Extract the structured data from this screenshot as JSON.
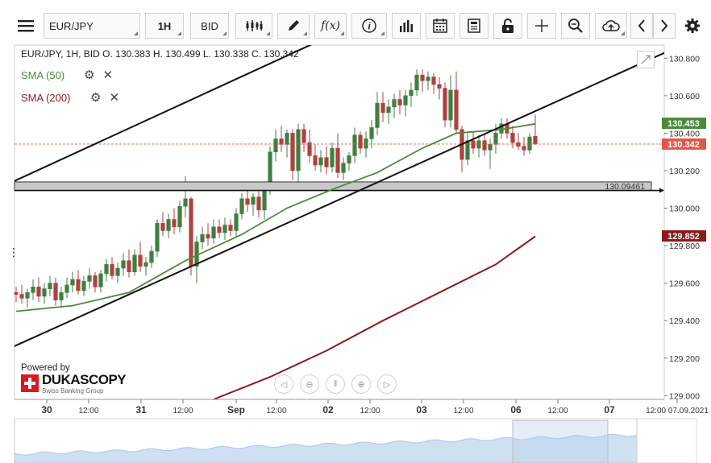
{
  "toolbar": {
    "menu_icon": "hamburger-menu-icon",
    "instrument": "EUR/JPY",
    "timeframe": "1H",
    "price_side": "BID",
    "icons": [
      "candle-type-icon",
      "pencil-draw-icon",
      "function-icon",
      "info-icon",
      "volume-bars-icon",
      "calendar-icon",
      "news-icon",
      "unlock-icon",
      "crosshair-icon",
      "zoom-icon",
      "cloud-upload-icon",
      "chevron-left-icon",
      "chevron-right-icon",
      "gear-icon"
    ],
    "function_label": "f(x)",
    "info_label": "i"
  },
  "legend": {
    "ohlc": "EUR/JPY, 1H, BID    O. 130.383 H. 130.499 L. 130.338 C. 130.342",
    "sma50": "SMA (50)",
    "sma200": "SMA (200)",
    "sma50_color": "#4a8a3a",
    "sma200_color": "#8b1a1a"
  },
  "branding": {
    "powered_by": "Powered by",
    "name": "DUKASCOPY",
    "sub": "Swiss Banking Group"
  },
  "chart_data": {
    "type": "candlestick",
    "instrument": "EUR/JPY",
    "timeframe": "1H",
    "y_ticks": [
      "130.800",
      "130.600",
      "130.400",
      "130.200",
      "130.000",
      "129.800",
      "129.600",
      "129.400",
      "129.200",
      "129.000"
    ],
    "ylim": [
      128.98,
      130.87
    ],
    "x_ticks": [
      "30",
      "12:00",
      "31",
      "12:00",
      "Sep",
      "12:00",
      "02",
      "12:00",
      "03",
      "12:00",
      "06",
      "12:00",
      "07",
      "12:00 07.09.2021"
    ],
    "price_labels": {
      "sma50": {
        "text": "130.453",
        "value": 130.453,
        "color": "#4a8a3a"
      },
      "last": {
        "text": "130.342",
        "value": 130.342,
        "color": "#e0584a"
      },
      "sma200": {
        "text": "129.852",
        "value": 129.852,
        "color": "#8b1a1a"
      },
      "hline": {
        "text": "130.09461",
        "value": 130.09461
      }
    },
    "candles": [
      [
        129.55,
        129.58,
        129.5,
        129.54
      ],
      [
        129.54,
        129.59,
        129.49,
        129.52
      ],
      [
        129.52,
        129.57,
        129.47,
        129.55
      ],
      [
        129.55,
        129.62,
        129.51,
        129.58
      ],
      [
        129.58,
        129.63,
        129.5,
        129.53
      ],
      [
        129.53,
        129.6,
        129.49,
        129.57
      ],
      [
        129.57,
        129.64,
        129.53,
        129.6
      ],
      [
        129.6,
        129.63,
        129.48,
        129.51
      ],
      [
        129.51,
        129.58,
        129.47,
        129.55
      ],
      [
        129.55,
        129.63,
        129.52,
        129.59
      ],
      [
        129.59,
        129.66,
        129.55,
        129.62
      ],
      [
        129.62,
        129.67,
        129.54,
        129.56
      ],
      [
        129.56,
        129.64,
        129.53,
        129.61
      ],
      [
        129.61,
        129.68,
        129.57,
        129.64
      ],
      [
        129.64,
        129.66,
        129.55,
        129.58
      ],
      [
        129.58,
        129.67,
        129.55,
        129.65
      ],
      [
        129.65,
        129.73,
        129.61,
        129.7
      ],
      [
        129.7,
        129.74,
        129.62,
        129.64
      ],
      [
        129.64,
        129.71,
        129.6,
        129.68
      ],
      [
        129.68,
        129.76,
        129.64,
        129.72
      ],
      [
        129.72,
        129.78,
        129.63,
        129.66
      ],
      [
        129.66,
        129.78,
        129.64,
        129.75
      ],
      [
        129.75,
        129.82,
        129.66,
        129.69
      ],
      [
        129.69,
        129.74,
        129.64,
        129.71
      ],
      [
        129.71,
        129.8,
        129.68,
        129.77
      ],
      [
        129.77,
        129.94,
        129.74,
        129.92
      ],
      [
        129.92,
        129.98,
        129.85,
        129.88
      ],
      [
        129.88,
        129.97,
        129.84,
        129.94
      ],
      [
        129.94,
        130.0,
        129.86,
        129.9
      ],
      [
        129.9,
        130.04,
        129.87,
        130.01
      ],
      [
        130.01,
        130.17,
        129.95,
        130.05
      ],
      [
        130.05,
        130.06,
        129.64,
        129.69
      ],
      [
        129.69,
        129.85,
        129.6,
        129.82
      ],
      [
        129.82,
        129.9,
        129.78,
        129.86
      ],
      [
        129.86,
        129.92,
        129.8,
        129.84
      ],
      [
        129.84,
        129.94,
        129.81,
        129.9
      ],
      [
        129.9,
        129.94,
        129.84,
        129.87
      ],
      [
        129.87,
        129.95,
        129.83,
        129.91
      ],
      [
        129.91,
        129.94,
        129.85,
        129.88
      ],
      [
        129.88,
        130.0,
        129.85,
        129.97
      ],
      [
        129.97,
        130.08,
        129.94,
        130.05
      ],
      [
        130.05,
        130.1,
        129.98,
        130.02
      ],
      [
        130.02,
        130.08,
        129.96,
        130.06
      ],
      [
        130.06,
        130.09,
        129.95,
        129.99
      ],
      [
        129.99,
        130.13,
        129.94,
        130.1
      ],
      [
        130.1,
        130.33,
        130.07,
        130.3
      ],
      [
        130.3,
        130.42,
        130.25,
        130.37
      ],
      [
        130.37,
        130.44,
        130.3,
        130.34
      ],
      [
        130.34,
        130.42,
        130.27,
        130.4
      ],
      [
        130.4,
        130.42,
        130.15,
        130.2
      ],
      [
        130.2,
        130.45,
        130.13,
        130.42
      ],
      [
        130.42,
        130.45,
        130.3,
        130.35
      ],
      [
        130.35,
        130.42,
        130.24,
        130.28
      ],
      [
        130.28,
        130.34,
        130.2,
        130.23
      ],
      [
        130.23,
        130.31,
        130.19,
        130.27
      ],
      [
        130.27,
        130.33,
        130.18,
        130.22
      ],
      [
        130.22,
        130.35,
        130.19,
        130.32
      ],
      [
        130.32,
        130.4,
        130.16,
        130.19
      ],
      [
        130.19,
        130.27,
        130.15,
        130.24
      ],
      [
        130.24,
        130.3,
        130.2,
        130.28
      ],
      [
        130.28,
        130.43,
        130.24,
        130.39
      ],
      [
        130.39,
        130.41,
        130.29,
        130.32
      ],
      [
        130.32,
        130.41,
        130.27,
        130.37
      ],
      [
        130.37,
        130.47,
        130.32,
        130.43
      ],
      [
        130.43,
        130.62,
        130.39,
        130.56
      ],
      [
        130.56,
        130.62,
        130.46,
        130.51
      ],
      [
        130.51,
        130.58,
        130.45,
        130.54
      ],
      [
        130.54,
        130.61,
        130.48,
        130.58
      ],
      [
        130.58,
        130.63,
        130.5,
        130.55
      ],
      [
        130.55,
        130.63,
        130.49,
        130.6
      ],
      [
        130.6,
        130.67,
        130.54,
        130.63
      ],
      [
        130.63,
        130.74,
        130.6,
        130.71
      ],
      [
        130.71,
        130.74,
        130.62,
        130.68
      ],
      [
        130.68,
        130.73,
        130.63,
        130.7
      ],
      [
        130.7,
        130.72,
        130.61,
        130.66
      ],
      [
        130.66,
        130.7,
        130.58,
        130.64
      ],
      [
        130.64,
        130.67,
        130.43,
        130.47
      ],
      [
        130.47,
        130.71,
        130.43,
        130.63
      ],
      [
        130.63,
        130.73,
        130.4,
        130.42
      ],
      [
        130.42,
        130.44,
        130.19,
        130.26
      ],
      [
        130.26,
        130.4,
        130.23,
        130.36
      ],
      [
        130.36,
        130.41,
        130.29,
        130.32
      ],
      [
        130.32,
        130.39,
        130.27,
        130.36
      ],
      [
        130.36,
        130.4,
        130.28,
        130.31
      ],
      [
        130.31,
        130.37,
        130.21,
        130.34
      ],
      [
        130.34,
        130.45,
        130.29,
        130.4
      ],
      [
        130.4,
        130.48,
        130.37,
        130.45
      ],
      [
        130.45,
        130.48,
        130.37,
        130.4
      ],
      [
        130.4,
        130.44,
        130.32,
        130.35
      ],
      [
        130.35,
        130.4,
        130.31,
        130.33
      ],
      [
        130.33,
        130.38,
        130.28,
        130.31
      ],
      [
        130.31,
        130.4,
        130.29,
        130.38
      ],
      [
        130.383,
        130.499,
        130.338,
        130.342
      ]
    ],
    "sma50": {
      "start": 129.45,
      "points": [
        [
          0,
          129.45
        ],
        [
          10,
          129.48
        ],
        [
          20,
          129.55
        ],
        [
          30,
          129.72
        ],
        [
          40,
          129.86
        ],
        [
          48,
          130.0
        ],
        [
          56,
          130.1
        ],
        [
          64,
          130.19
        ],
        [
          72,
          130.32
        ],
        [
          78,
          130.4
        ],
        [
          86,
          130.42
        ],
        [
          92,
          130.45
        ]
      ]
    },
    "sma200": {
      "points": [
        [
          35,
          128.98
        ],
        [
          45,
          129.1
        ],
        [
          55,
          129.24
        ],
        [
          65,
          129.4
        ],
        [
          75,
          129.55
        ],
        [
          85,
          129.7
        ],
        [
          92,
          129.85
        ]
      ]
    },
    "trendlines": [
      {
        "from": [
          -5,
          129.2
        ],
        "to": [
          115,
          130.83
        ]
      },
      {
        "from": [
          -5,
          130.08
        ],
        "to": [
          55,
          130.91
        ]
      }
    ],
    "support_zone": [
      130.09461,
      130.14
    ]
  }
}
